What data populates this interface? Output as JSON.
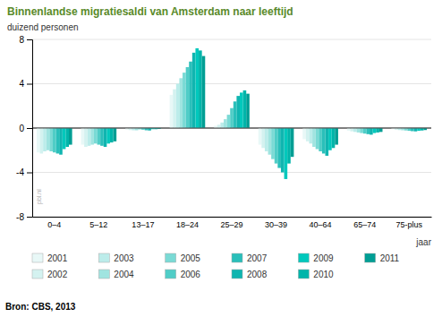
{
  "chart_data": {
    "type": "bar",
    "title": "Binnenlandse migratiesaldi van Amsterdam naar leeftijd",
    "title_color": "#5a8a2a",
    "ylabel": "duizend personen",
    "xlabel": "jaar",
    "source": "Bron: CBS, 2013",
    "annotations": [
      "pbl.nl"
    ],
    "ylim": [
      -8,
      8
    ],
    "yticks": [
      -8,
      -4,
      0,
      4,
      8
    ],
    "grid": true,
    "legend": "bottom",
    "categories": [
      "0–4",
      "5–12",
      "13–17",
      "18–24",
      "25–29",
      "30–39",
      "40–64",
      "65–74",
      "75-plus"
    ],
    "series": [
      {
        "name": "2001",
        "color": "#e8f8f7",
        "values": [
          -2.2,
          -1.5,
          -0.15,
          3.0,
          0.2,
          -1.5,
          -1.0,
          -0.25,
          -0.1
        ]
      },
      {
        "name": "2002",
        "color": "#d4f2f0",
        "values": [
          -2.3,
          -1.7,
          -0.18,
          3.5,
          0.3,
          -1.8,
          -1.2,
          -0.3,
          -0.15
        ]
      },
      {
        "name": "2003",
        "color": "#bcecea",
        "values": [
          -2.1,
          -1.6,
          -0.2,
          4.0,
          0.5,
          -2.1,
          -1.4,
          -0.35,
          -0.18
        ]
      },
      {
        "name": "2004",
        "color": "#a0e4e0",
        "values": [
          -2.0,
          -1.5,
          -0.2,
          4.5,
          0.8,
          -2.4,
          -1.7,
          -0.4,
          -0.2
        ]
      },
      {
        "name": "2005",
        "color": "#7adad5",
        "values": [
          -2.1,
          -1.4,
          -0.12,
          5.0,
          1.2,
          -2.8,
          -1.9,
          -0.45,
          -0.22
        ]
      },
      {
        "name": "2006",
        "color": "#50cdc7",
        "values": [
          -2.2,
          -1.5,
          -0.15,
          5.5,
          1.8,
          -3.2,
          -2.1,
          -0.5,
          -0.25
        ]
      },
      {
        "name": "2007",
        "color": "#2abfba",
        "values": [
          -2.3,
          -1.6,
          -0.2,
          6.0,
          2.4,
          -3.6,
          -2.3,
          -0.55,
          -0.28
        ]
      },
      {
        "name": "2008",
        "color": "#10b5b0",
        "values": [
          -2.4,
          -1.7,
          -0.22,
          6.8,
          2.9,
          -4.0,
          -2.5,
          -0.6,
          -0.3
        ]
      },
      {
        "name": "2009",
        "color": "#00c8bc",
        "values": [
          -1.9,
          -1.4,
          -0.1,
          7.2,
          3.2,
          -4.6,
          -2.0,
          -0.45,
          -0.25
        ]
      },
      {
        "name": "2010",
        "color": "#00b5aa",
        "values": [
          -1.7,
          -1.3,
          -0.1,
          7.0,
          3.4,
          -3.2,
          -1.8,
          -0.4,
          -0.22
        ]
      },
      {
        "name": "2011",
        "color": "#009e94",
        "values": [
          -1.5,
          -1.2,
          -0.08,
          6.5,
          3.1,
          -2.6,
          -1.5,
          -0.35,
          -0.18
        ]
      }
    ]
  }
}
